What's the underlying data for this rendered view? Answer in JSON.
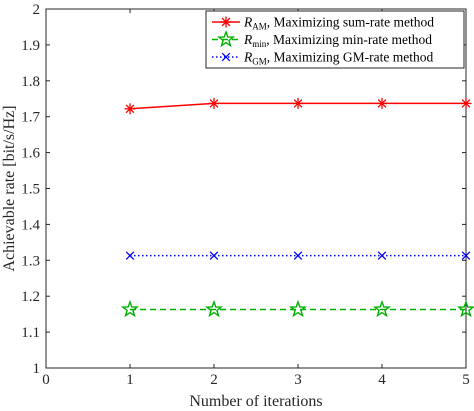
{
  "chart_data": {
    "type": "line",
    "xlabel": "Number of iterations",
    "ylabel": "Achievable rate [bit/s/Hz]",
    "xlim": [
      0,
      5
    ],
    "ylim": [
      1,
      2
    ],
    "x": [
      1,
      2,
      3,
      4,
      5
    ],
    "xticks": [
      "0",
      "1",
      "2",
      "3",
      "4",
      "5"
    ],
    "yticks": [
      "1",
      "1.1",
      "1.2",
      "1.3",
      "1.4",
      "1.5",
      "1.6",
      "1.7",
      "1.8",
      "1.9",
      "2"
    ],
    "grid": false,
    "legend_position": "top-right",
    "series": [
      {
        "symbol": "R",
        "subscript": "AM",
        "label": ", Maximizing sum-rate method",
        "color": "#ff0000",
        "line_style": "solid",
        "marker": "asterisk",
        "values": [
          1.722,
          1.737,
          1.737,
          1.737,
          1.737
        ]
      },
      {
        "symbol": "R",
        "subscript": "min",
        "label": ", Maximizing min-rate method",
        "color": "#00b000",
        "line_style": "dashed",
        "marker": "pentagram",
        "values": [
          1.163,
          1.163,
          1.163,
          1.163,
          1.163
        ]
      },
      {
        "symbol": "R",
        "subscript": "GM",
        "label": ", Maximizing GM-rate method",
        "color": "#0000ff",
        "line_style": "dotted",
        "marker": "x",
        "values": [
          1.313,
          1.313,
          1.313,
          1.313,
          1.313
        ]
      }
    ]
  }
}
